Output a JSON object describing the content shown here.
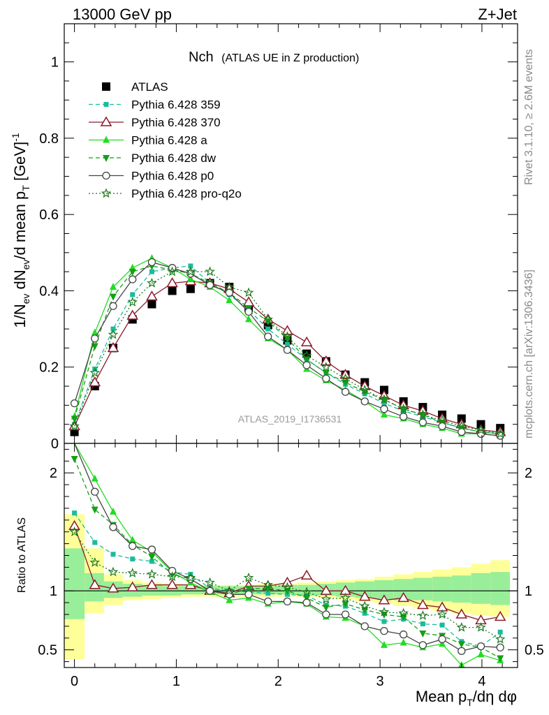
{
  "header": {
    "energy_label": "13000 GeV pp",
    "process_label": "Z+Jet"
  },
  "side_labels": {
    "rivet": "Rivet 3.1.10, ≥ 2.6M events",
    "mcplots": "mcplots.cern.ch [arXiv:1306.3436]"
  },
  "colors": {
    "data": "#000000",
    "pythia_359": "#1abc9c",
    "pythia_370": "#8b1a2b",
    "pythia_a": "#22dd22",
    "pythia_dw": "#15a015",
    "pythia_p0": "#444444",
    "pythia_pro_q2o": "#1e7a1e",
    "band_outer": "#ffff99",
    "band_inner": "#99ee99"
  },
  "chart_data": [
    {
      "type": "line",
      "title": "Nch",
      "subtitle": "(ATLAS UE in Z production)",
      "watermark": "ATLAS_2019_I1736531",
      "ylabel": "1/N_ev dN_ev/d mean p_T [GeV]^-1",
      "ylim": [
        0,
        1.1
      ],
      "xlim": [
        -0.1,
        4.35
      ],
      "yticks": [
        "0",
        "0.2",
        "0.4",
        "0.6",
        "0.8",
        "1"
      ],
      "legend_position": "top-left",
      "x": [
        0.0,
        0.2,
        0.38,
        0.57,
        0.76,
        0.96,
        1.14,
        1.33,
        1.52,
        1.71,
        1.9,
        2.09,
        2.28,
        2.47,
        2.66,
        2.85,
        3.04,
        3.23,
        3.42,
        3.61,
        3.8,
        3.99,
        4.18
      ],
      "series": [
        {
          "name": "ATLAS",
          "key": "data",
          "style": "data",
          "values": [
            0.03,
            0.15,
            0.25,
            0.325,
            0.365,
            0.4,
            0.405,
            0.42,
            0.41,
            0.355,
            0.31,
            0.27,
            0.235,
            0.215,
            0.18,
            0.16,
            0.14,
            0.11,
            0.095,
            0.075,
            0.065,
            0.05,
            0.04
          ]
        },
        {
          "name": "Pythia 6.428 359",
          "key": "pythia_359",
          "style": "dashed",
          "marker": "square-small",
          "values": [
            0.05,
            0.195,
            0.3,
            0.39,
            0.45,
            0.46,
            0.465,
            0.42,
            0.39,
            0.35,
            0.3,
            0.26,
            0.22,
            0.185,
            0.155,
            0.13,
            0.105,
            0.085,
            0.07,
            0.055,
            0.04,
            0.03,
            0.025
          ]
        },
        {
          "name": "Pythia 6.428 370",
          "key": "pythia_370",
          "style": "solid",
          "marker": "triangle-open",
          "values": [
            0.045,
            0.16,
            0.25,
            0.335,
            0.385,
            0.42,
            0.425,
            0.42,
            0.405,
            0.37,
            0.325,
            0.295,
            0.265,
            0.215,
            0.18,
            0.15,
            0.125,
            0.1,
            0.085,
            0.065,
            0.05,
            0.035,
            0.03
          ]
        },
        {
          "name": "Pythia 6.428 a",
          "key": "pythia_a",
          "style": "solid",
          "marker": "triangle-up",
          "values": [
            0.07,
            0.29,
            0.41,
            0.46,
            0.485,
            0.46,
            0.43,
            0.41,
            0.375,
            0.325,
            0.275,
            0.245,
            0.195,
            0.165,
            0.14,
            0.11,
            0.075,
            0.065,
            0.05,
            0.04,
            0.025,
            0.025,
            0.02
          ]
        },
        {
          "name": "Pythia 6.428 dw",
          "key": "pythia_dw",
          "style": "dashed",
          "marker": "triangle-down",
          "values": [
            0.065,
            0.255,
            0.385,
            0.45,
            0.465,
            0.455,
            0.445,
            0.42,
            0.395,
            0.355,
            0.32,
            0.275,
            0.22,
            0.185,
            0.16,
            0.135,
            0.115,
            0.09,
            0.075,
            0.055,
            0.04,
            0.03,
            0.025
          ]
        },
        {
          "name": "Pythia 6.428 p0",
          "key": "pythia_p0",
          "style": "solid",
          "marker": "circle-open",
          "values": [
            0.105,
            0.275,
            0.36,
            0.43,
            0.475,
            0.46,
            0.445,
            0.415,
            0.395,
            0.345,
            0.28,
            0.245,
            0.205,
            0.17,
            0.135,
            0.11,
            0.09,
            0.07,
            0.055,
            0.045,
            0.03,
            0.025,
            0.02
          ]
        },
        {
          "name": "Pythia 6.428 pro-q2o",
          "key": "pythia_pro_q2o",
          "style": "dotted",
          "marker": "star",
          "values": [
            0.045,
            0.185,
            0.285,
            0.37,
            0.42,
            0.45,
            0.45,
            0.45,
            0.41,
            0.395,
            0.325,
            0.28,
            0.23,
            0.2,
            0.17,
            0.14,
            0.115,
            0.09,
            0.075,
            0.06,
            0.045,
            0.035,
            0.025
          ]
        }
      ]
    },
    {
      "type": "line",
      "ylabel": "Ratio to ATLAS",
      "xlabel": "Mean p_T/dη dφ",
      "ylim": [
        0.35,
        2.25
      ],
      "xlim": [
        -0.1,
        4.35
      ],
      "yticks": [
        "0.5",
        "1",
        "2"
      ],
      "xticks": [
        "0",
        "1",
        "2",
        "3",
        "4"
      ],
      "x": [
        0.0,
        0.2,
        0.38,
        0.57,
        0.76,
        0.96,
        1.14,
        1.33,
        1.52,
        1.71,
        1.9,
        2.09,
        2.28,
        2.47,
        2.66,
        2.85,
        3.04,
        3.23,
        3.42,
        3.61,
        3.8,
        3.99,
        4.18
      ],
      "bands": {
        "outer_low": [
          0.42,
          0.81,
          0.88,
          0.92,
          0.93,
          0.94,
          0.95,
          0.95,
          0.95,
          0.95,
          0.95,
          0.95,
          0.95,
          0.94,
          0.93,
          0.91,
          0.89,
          0.87,
          0.85,
          0.83,
          0.81,
          0.79,
          0.78
        ],
        "outer_high": [
          1.65,
          1.36,
          1.14,
          1.09,
          1.07,
          1.06,
          1.05,
          1.05,
          1.05,
          1.05,
          1.06,
          1.06,
          1.07,
          1.08,
          1.09,
          1.1,
          1.12,
          1.14,
          1.16,
          1.18,
          1.2,
          1.23,
          1.26
        ],
        "inner_low": [
          0.76,
          0.91,
          0.94,
          0.95,
          0.96,
          0.96,
          0.97,
          0.97,
          0.97,
          0.97,
          0.97,
          0.97,
          0.96,
          0.96,
          0.95,
          0.94,
          0.93,
          0.92,
          0.92,
          0.91,
          0.9,
          0.89,
          0.88
        ],
        "inner_high": [
          1.36,
          1.15,
          1.08,
          1.06,
          1.05,
          1.04,
          1.04,
          1.04,
          1.04,
          1.04,
          1.04,
          1.05,
          1.05,
          1.06,
          1.07,
          1.08,
          1.09,
          1.1,
          1.11,
          1.12,
          1.13,
          1.15,
          1.16
        ]
      },
      "series": [
        {
          "name": "Pythia 6.428 359",
          "key": "pythia_359",
          "style": "dashed",
          "marker": "square-small",
          "values": [
            1.66,
            1.41,
            1.31,
            1.27,
            1.25,
            1.16,
            1.14,
            1.02,
            1.0,
            0.99,
            0.98,
            0.97,
            0.96,
            0.88,
            0.87,
            0.81,
            0.74,
            0.76,
            0.72,
            0.71,
            0.57,
            0.53,
            0.65
          ]
        },
        {
          "name": "Pythia 6.428 370",
          "key": "pythia_370",
          "style": "solid",
          "marker": "triangle-open",
          "values": [
            1.55,
            1.05,
            1.02,
            1.03,
            1.05,
            1.05,
            1.05,
            1.0,
            0.98,
            1.04,
            1.04,
            1.07,
            1.13,
            1.0,
            1.0,
            0.95,
            0.92,
            0.94,
            0.88,
            0.86,
            0.8,
            0.75,
            0.78
          ]
        },
        {
          "name": "Pythia 6.428 a",
          "key": "pythia_a",
          "style": "solid",
          "marker": "triangle-up",
          "values": [
            2.33,
            1.95,
            1.67,
            1.43,
            1.33,
            1.16,
            1.07,
            0.99,
            0.92,
            0.94,
            0.89,
            0.91,
            0.89,
            0.78,
            0.77,
            0.7,
            0.54,
            0.56,
            0.52,
            0.55,
            0.37,
            0.46,
            0.41
          ]
        },
        {
          "name": "Pythia 6.428 dw",
          "key": "pythia_dw",
          "style": "dashed",
          "marker": "triangle-down",
          "values": [
            2.12,
            1.69,
            1.56,
            1.39,
            1.29,
            1.14,
            1.1,
            1.0,
            0.97,
            1.02,
            1.02,
            1.0,
            0.94,
            0.86,
            0.89,
            0.84,
            0.8,
            0.78,
            0.64,
            0.62,
            0.55,
            0.52,
            0.43
          ]
        },
        {
          "name": "Pythia 6.428 p0",
          "key": "pythia_p0",
          "style": "solid",
          "marker": "circle-open",
          "values": [
            3.2,
            1.84,
            1.54,
            1.38,
            1.35,
            1.17,
            1.1,
            1.0,
            0.97,
            0.97,
            0.91,
            0.91,
            0.9,
            0.8,
            0.8,
            0.7,
            0.66,
            0.63,
            0.54,
            0.59,
            0.49,
            0.53,
            0.52
          ]
        },
        {
          "name": "Pythia 6.428 pro-q2o",
          "key": "pythia_pro_q2o",
          "style": "dotted",
          "marker": "star",
          "values": [
            1.5,
            1.24,
            1.16,
            1.15,
            1.14,
            1.12,
            1.11,
            1.07,
            1.0,
            1.11,
            1.05,
            1.03,
            0.99,
            0.93,
            0.94,
            0.87,
            0.82,
            0.81,
            0.79,
            0.8,
            0.69,
            0.69,
            0.59
          ]
        }
      ]
    }
  ]
}
